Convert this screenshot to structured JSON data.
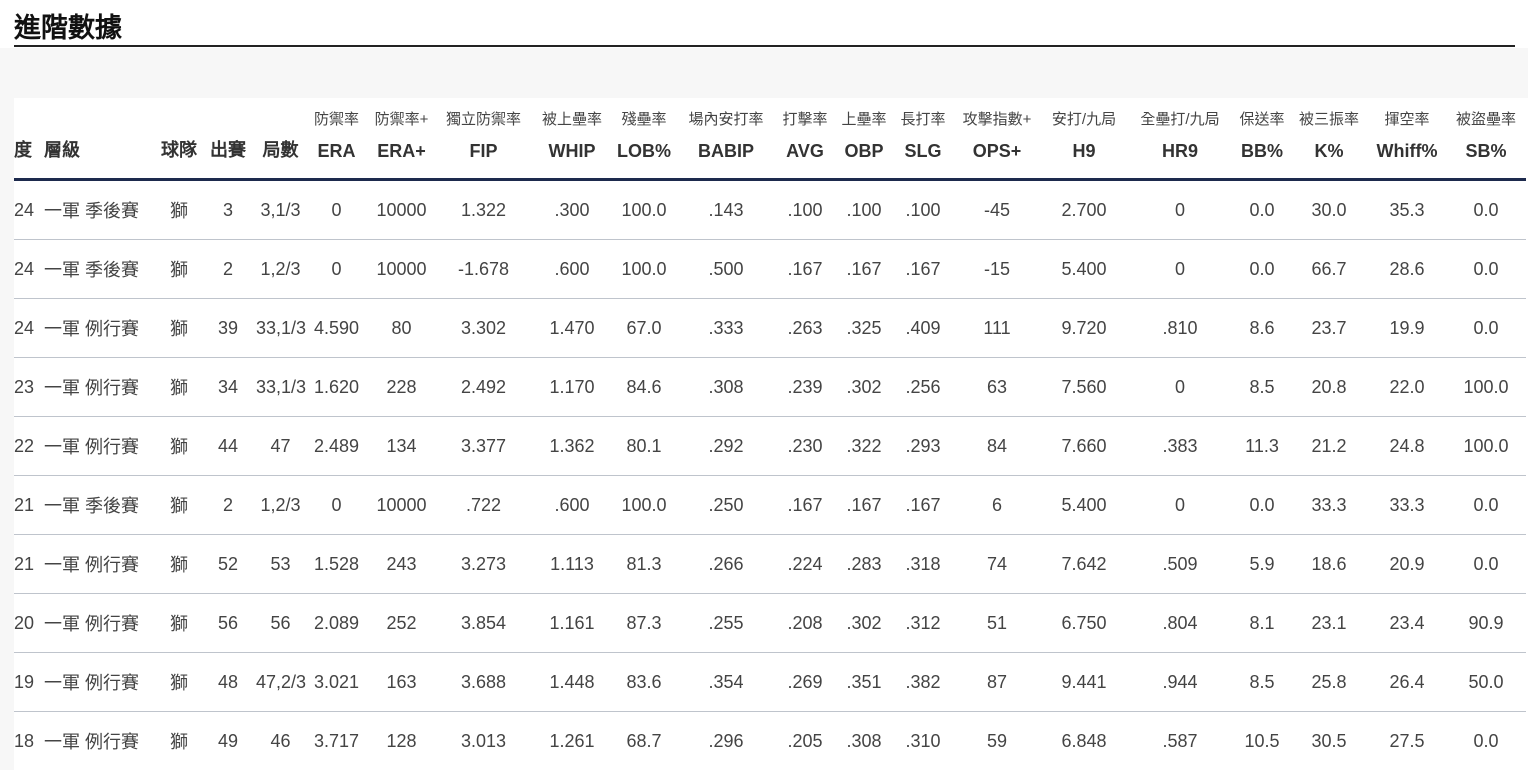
{
  "header": {
    "title": "進階數據"
  },
  "table": {
    "columns": [
      {
        "en": "度"
      },
      {
        "en": "層級"
      },
      {
        "en": "球隊"
      },
      {
        "en": "出賽"
      },
      {
        "en": "局數"
      },
      {
        "zh": "防禦率",
        "en": "ERA"
      },
      {
        "zh": "防禦率+",
        "en": "ERA+"
      },
      {
        "zh": "獨立防禦率",
        "en": "FIP"
      },
      {
        "zh": "被上壘率",
        "en": "WHIP"
      },
      {
        "zh": "殘壘率",
        "en": "LOB%"
      },
      {
        "zh": "場內安打率",
        "en": "BABIP"
      },
      {
        "zh": "打擊率",
        "en": "AVG"
      },
      {
        "zh": "上壘率",
        "en": "OBP"
      },
      {
        "zh": "長打率",
        "en": "SLG"
      },
      {
        "zh": "攻擊指數+",
        "en": "OPS+"
      },
      {
        "zh": "安打/九局",
        "en": "H9"
      },
      {
        "zh": "全壘打/九局",
        "en": "HR9"
      },
      {
        "zh": "保送率",
        "en": "BB%"
      },
      {
        "zh": "被三振率",
        "en": "K%"
      },
      {
        "zh": "揮空率",
        "en": "Whiff%"
      },
      {
        "zh": "被盜壘率",
        "en": "SB%"
      }
    ],
    "rows": [
      [
        "24",
        "一軍 季後賽",
        "獅",
        "3",
        "3,1/3",
        "0",
        "10000",
        "1.322",
        ".300",
        "100.0",
        ".143",
        ".100",
        ".100",
        ".100",
        "-45",
        "2.700",
        "0",
        "0.0",
        "30.0",
        "35.3",
        "0.0"
      ],
      [
        "24",
        "一軍 季後賽",
        "獅",
        "2",
        "1,2/3",
        "0",
        "10000",
        "-1.678",
        ".600",
        "100.0",
        ".500",
        ".167",
        ".167",
        ".167",
        "-15",
        "5.400",
        "0",
        "0.0",
        "66.7",
        "28.6",
        "0.0"
      ],
      [
        "24",
        "一軍 例行賽",
        "獅",
        "39",
        "33,1/3",
        "4.590",
        "80",
        "3.302",
        "1.470",
        "67.0",
        ".333",
        ".263",
        ".325",
        ".409",
        "111",
        "9.720",
        ".810",
        "8.6",
        "23.7",
        "19.9",
        "0.0"
      ],
      [
        "23",
        "一軍 例行賽",
        "獅",
        "34",
        "33,1/3",
        "1.620",
        "228",
        "2.492",
        "1.170",
        "84.6",
        ".308",
        ".239",
        ".302",
        ".256",
        "63",
        "7.560",
        "0",
        "8.5",
        "20.8",
        "22.0",
        "100.0"
      ],
      [
        "22",
        "一軍 例行賽",
        "獅",
        "44",
        "47",
        "2.489",
        "134",
        "3.377",
        "1.362",
        "80.1",
        ".292",
        ".230",
        ".322",
        ".293",
        "84",
        "7.660",
        ".383",
        "11.3",
        "21.2",
        "24.8",
        "100.0"
      ],
      [
        "21",
        "一軍 季後賽",
        "獅",
        "2",
        "1,2/3",
        "0",
        "10000",
        ".722",
        ".600",
        "100.0",
        ".250",
        ".167",
        ".167",
        ".167",
        "6",
        "5.400",
        "0",
        "0.0",
        "33.3",
        "33.3",
        "0.0"
      ],
      [
        "21",
        "一軍 例行賽",
        "獅",
        "52",
        "53",
        "1.528",
        "243",
        "3.273",
        "1.113",
        "81.3",
        ".266",
        ".224",
        ".283",
        ".318",
        "74",
        "7.642",
        ".509",
        "5.9",
        "18.6",
        "20.9",
        "0.0"
      ],
      [
        "20",
        "一軍 例行賽",
        "獅",
        "56",
        "56",
        "2.089",
        "252",
        "3.854",
        "1.161",
        "87.3",
        ".255",
        ".208",
        ".302",
        ".312",
        "51",
        "6.750",
        ".804",
        "8.1",
        "23.1",
        "23.4",
        "90.9"
      ],
      [
        "19",
        "一軍 例行賽",
        "獅",
        "48",
        "47,2/3",
        "3.021",
        "163",
        "3.688",
        "1.448",
        "83.6",
        ".354",
        ".269",
        ".351",
        ".382",
        "87",
        "9.441",
        ".944",
        "8.5",
        "25.8",
        "26.4",
        "50.0"
      ],
      [
        "18",
        "一軍 例行賽",
        "獅",
        "49",
        "46",
        "3.717",
        "128",
        "3.013",
        "1.261",
        "68.7",
        ".296",
        ".205",
        ".308",
        ".310",
        "59",
        "6.848",
        ".587",
        "10.5",
        "30.5",
        "27.5",
        "0.0"
      ]
    ]
  }
}
